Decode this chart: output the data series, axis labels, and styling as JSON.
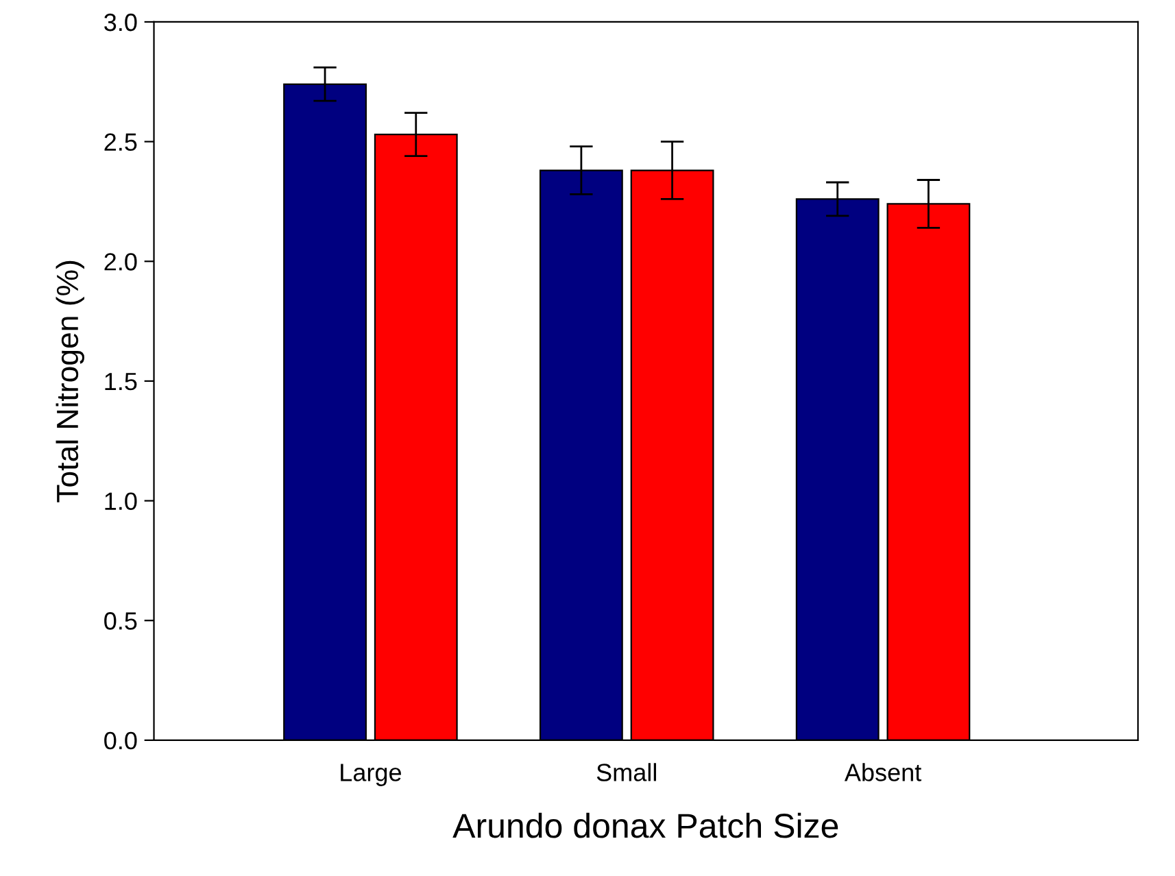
{
  "chart_data": {
    "type": "bar",
    "xlabel": "Arundo donax Patch Size",
    "ylabel": "Total Nitrogen (%)",
    "categories": [
      "Large",
      "Small",
      "Absent"
    ],
    "series": [
      {
        "color": "#000080",
        "values": [
          2.74,
          2.38,
          2.26
        ],
        "errors": [
          0.07,
          0.1,
          0.07
        ]
      },
      {
        "color": "#ff0000",
        "values": [
          2.53,
          2.38,
          2.24
        ],
        "errors": [
          0.09,
          0.12,
          0.1
        ]
      }
    ],
    "ylim": [
      0,
      3.0
    ],
    "yticks": [
      {
        "value": 0,
        "label": "0.0"
      },
      0.5,
      {
        "value": 1,
        "label": "1.0"
      },
      1.5,
      {
        "value": 2,
        "label": "2.0"
      },
      2.5,
      {
        "value": 3,
        "label": "3.0"
      }
    ],
    "grid": false,
    "legend": false
  }
}
